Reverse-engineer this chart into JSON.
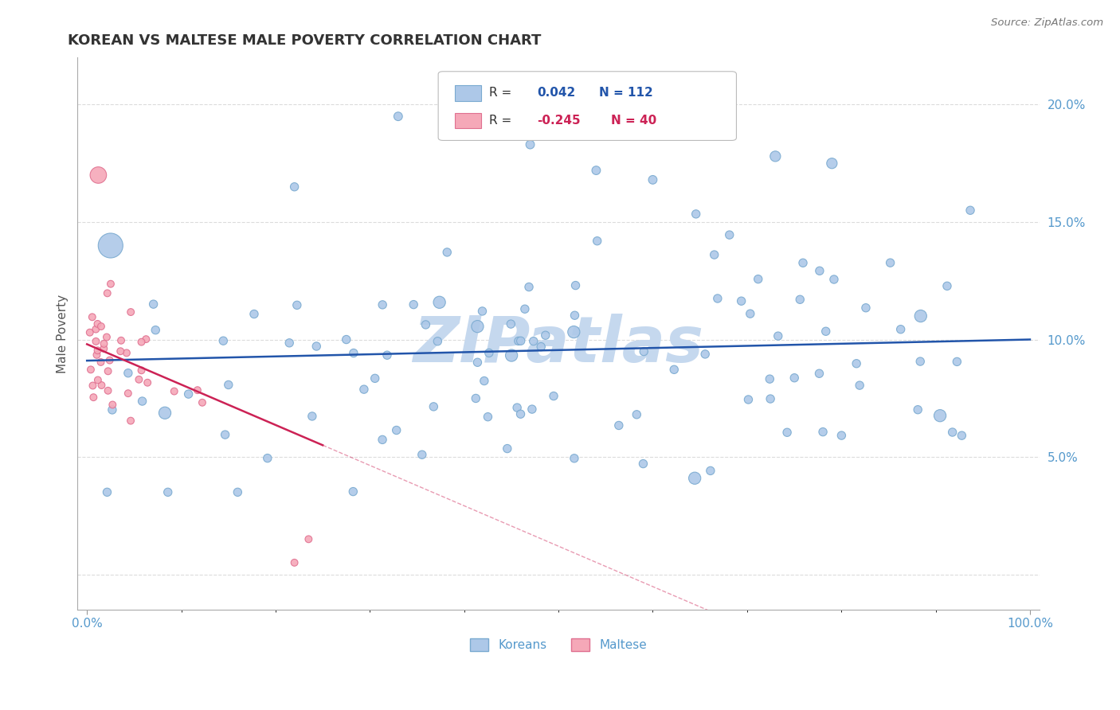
{
  "title": "KOREAN VS MALTESE MALE POVERTY CORRELATION CHART",
  "source_text": "Source: ZipAtlas.com",
  "ylabel": "Male Poverty",
  "korean_R": 0.042,
  "korean_N": 112,
  "maltese_R": -0.245,
  "maltese_N": 40,
  "korean_color": "#adc8e8",
  "korean_edge": "#7aaad0",
  "maltese_color": "#f5a8b8",
  "maltese_edge": "#e07090",
  "trendline_korean_color": "#2255aa",
  "trendline_maltese_color": "#cc2255",
  "watermark_color": "#c5d8ee",
  "legend_korean_label": "Koreans",
  "legend_maltese_label": "Maltese",
  "background_color": "#ffffff",
  "grid_color": "#cccccc",
  "axis_label_color": "#5599cc",
  "title_color": "#333333"
}
